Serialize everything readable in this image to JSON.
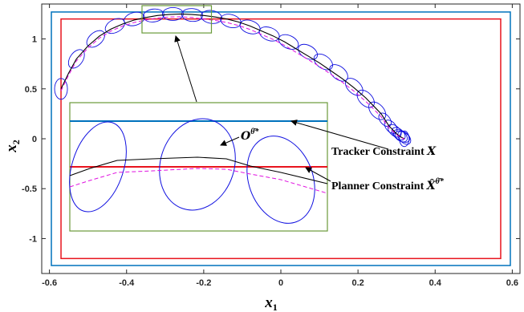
{
  "chart_data": {
    "type": "line",
    "xlabel": "x",
    "xlabel_sub": "1",
    "ylabel": "x",
    "ylabel_sub": "2",
    "xlim": [
      -0.62,
      0.62
    ],
    "ylim": [
      -1.35,
      1.35
    ],
    "xticks": [
      "-0.6",
      "-0.4",
      "-0.2",
      "0",
      "0.2",
      "0.4",
      "0.6"
    ],
    "yticks": [
      "-1",
      "-0.5",
      "0",
      "0.5",
      "1"
    ],
    "xtick_values": [
      -0.6,
      -0.4,
      -0.2,
      0,
      0.2,
      0.4,
      0.6
    ],
    "ytick_values": [
      -1,
      -0.5,
      0,
      0.5,
      1
    ],
    "grid": false,
    "colors": {
      "tracker_constraint": "#0072BD",
      "planner_constraint": "#E8141E",
      "ellipses": "#1010E0",
      "trajectory": "#000000",
      "planned_trajectory": "#E010E0",
      "zoom_box": "#6A9A3A"
    },
    "tracker_constraint": {
      "x": [
        -0.595,
        0.595
      ],
      "y": [
        -1.27,
        1.27
      ]
    },
    "planner_constraint": {
      "x": [
        -0.57,
        0.57
      ],
      "y": [
        -1.2,
        1.2
      ]
    },
    "trajectory_x": [
      -0.57,
      -0.55,
      -0.53,
      -0.5,
      -0.47,
      -0.44,
      -0.41,
      -0.38,
      -0.35,
      -0.32,
      -0.29,
      -0.26,
      -0.23,
      -0.2,
      -0.17,
      -0.14,
      -0.11,
      -0.08,
      -0.05,
      -0.02,
      0.01,
      0.04,
      0.07,
      0.1,
      0.13,
      0.16,
      0.19,
      0.22,
      0.24,
      0.26,
      0.27,
      0.28,
      0.29,
      0.3,
      0.31,
      0.315,
      0.32
    ],
    "trajectory_y": [
      0.5,
      0.66,
      0.8,
      0.93,
      1.03,
      1.1,
      1.15,
      1.19,
      1.215,
      1.235,
      1.245,
      1.25,
      1.245,
      1.235,
      1.22,
      1.2,
      1.17,
      1.13,
      1.08,
      1.03,
      0.97,
      0.9,
      0.83,
      0.76,
      0.68,
      0.6,
      0.51,
      0.41,
      0.33,
      0.25,
      0.19,
      0.13,
      0.09,
      0.05,
      0.02,
      0.01,
      0.0
    ],
    "planned_trajectory_x": [
      -0.57,
      -0.55,
      -0.53,
      -0.5,
      -0.47,
      -0.44,
      -0.41,
      -0.38,
      -0.35,
      -0.32,
      -0.29,
      -0.26,
      -0.23,
      -0.2,
      -0.17,
      -0.14,
      -0.11,
      -0.08,
      -0.05,
      -0.02,
      0.01,
      0.04,
      0.07,
      0.1,
      0.13,
      0.16,
      0.19,
      0.22,
      0.24,
      0.26,
      0.27,
      0.28,
      0.29,
      0.3,
      0.31,
      0.315,
      0.32
    ],
    "planned_trajectory_y": [
      0.48,
      0.64,
      0.78,
      0.91,
      1.01,
      1.08,
      1.13,
      1.165,
      1.19,
      1.21,
      1.22,
      1.222,
      1.215,
      1.2,
      1.185,
      1.165,
      1.135,
      1.095,
      1.045,
      0.995,
      0.935,
      0.865,
      0.795,
      0.725,
      0.645,
      0.565,
      0.475,
      0.375,
      0.3,
      0.22,
      0.165,
      0.11,
      0.075,
      0.04,
      0.015,
      0.005,
      -0.005
    ],
    "ellipse_x": [
      -0.57,
      -0.53,
      -0.48,
      -0.43,
      -0.38,
      -0.33,
      -0.28,
      -0.23,
      -0.18,
      -0.13,
      -0.08,
      -0.03,
      0.02,
      0.07,
      0.11,
      0.15,
      0.19,
      0.22,
      0.25,
      0.27,
      0.285,
      0.295,
      0.305,
      0.31,
      0.315,
      0.32,
      0.32
    ],
    "ellipse_y": [
      0.5,
      0.8,
      1.0,
      1.13,
      1.2,
      1.235,
      1.25,
      1.24,
      1.22,
      1.18,
      1.12,
      1.05,
      0.97,
      0.87,
      0.77,
      0.66,
      0.52,
      0.4,
      0.28,
      0.19,
      0.12,
      0.08,
      0.05,
      0.03,
      0.02,
      0.01,
      0.0
    ],
    "zoom_source": {
      "x": [
        -0.36,
        -0.18
      ],
      "y": [
        1.06,
        1.35
      ]
    },
    "annotations": [
      {
        "text": "Tracker Constraint ",
        "symbol": "X"
      },
      {
        "text": "Planner Constraint ",
        "symbol": "X̂",
        "superscript": "θ̄*"
      },
      {
        "text": "",
        "symbol": "O",
        "superscript": "θ̄*"
      }
    ]
  }
}
